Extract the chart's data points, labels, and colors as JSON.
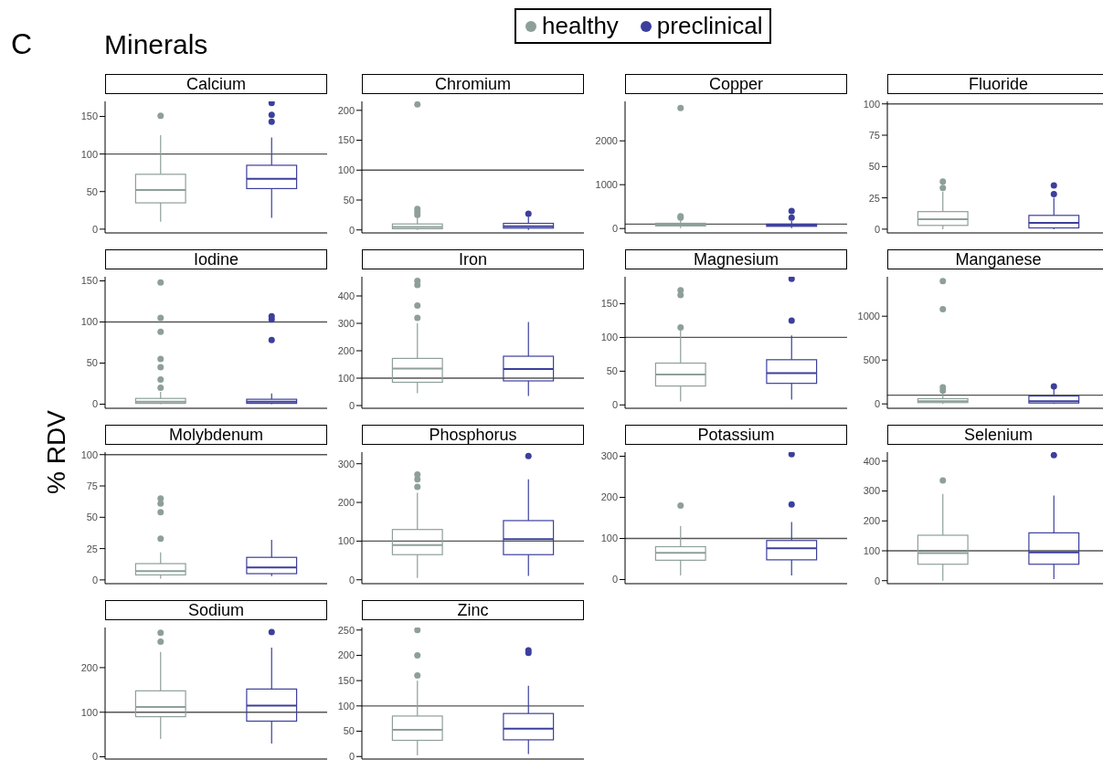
{
  "chart_data": [
    {
      "type": "other",
      "title": "Minerals",
      "annotations": [
        "C"
      ]
    },
    {
      "type": "box",
      "title": "Calcium",
      "legend": "top",
      "categories": [
        null,
        null
      ],
      "ylim": [
        -5,
        170
      ],
      "yticks": [
        0,
        50,
        100,
        150
      ],
      "tick_labels": "y",
      "ref_lines": [
        {
          "axis": "y",
          "value": 100,
          "color": "#555555"
        }
      ],
      "series": [
        {
          "name": "healthy",
          "color": "#8e9f99",
          "boxes": [
            {
              "low": 10,
              "q1": 35,
              "median": 52,
              "q3": 73,
              "high": 125,
              "outliers": [
                151
              ]
            },
            null
          ]
        },
        {
          "name": "preclinical",
          "color": "#3c3f9c",
          "boxes": [
            null,
            {
              "low": 15,
              "q1": 54,
              "median": 67,
              "q3": 85,
              "high": 122,
              "outliers": [
                143,
                152,
                168
              ]
            }
          ]
        }
      ]
    },
    {
      "type": "box",
      "title": "Chromium",
      "categories": [
        null,
        null
      ],
      "ylim": [
        -5,
        215
      ],
      "yticks": [
        0,
        50,
        100,
        150,
        200
      ],
      "tick_labels": "y",
      "ref_lines": [
        {
          "axis": "y",
          "value": 100,
          "color": "#555555"
        }
      ],
      "series": [
        {
          "color": "#8e9f99",
          "boxes": [
            {
              "low": 0,
              "q1": 2,
              "median": 5,
              "q3": 10,
              "high": 22,
              "outliers": [
                25,
                30,
                35,
                210
              ]
            },
            null
          ]
        },
        {
          "color": "#3c3f9c",
          "boxes": [
            null,
            {
              "low": 0,
              "q1": 3,
              "median": 6,
              "q3": 11,
              "high": 22,
              "outliers": [
                27
              ]
            }
          ]
        }
      ]
    },
    {
      "type": "box",
      "title": "Copper",
      "categories": [
        null,
        null
      ],
      "ylim": [
        -100,
        2900
      ],
      "yticks": [
        0,
        1000,
        2000
      ],
      "tick_labels": "y",
      "ref_lines": [
        {
          "axis": "y",
          "value": 100,
          "color": "#555555"
        }
      ],
      "series": [
        {
          "color": "#8e9f99",
          "boxes": [
            {
              "low": 10,
              "q1": 60,
              "median": 90,
              "q3": 120,
              "high": 210,
              "outliers": [
                250,
                280,
                2750
              ]
            },
            null
          ]
        },
        {
          "color": "#3c3f9c",
          "boxes": [
            null,
            {
              "low": 10,
              "q1": 50,
              "median": 70,
              "q3": 100,
              "high": 170,
              "outliers": [
                250,
                400
              ]
            }
          ]
        }
      ]
    },
    {
      "type": "box",
      "title": "Fluoride",
      "categories": [
        null,
        null
      ],
      "ylim": [
        -3,
        102
      ],
      "yticks": [
        0,
        25,
        50,
        75,
        100
      ],
      "tick_labels": "y",
      "ref_lines": [
        {
          "axis": "y",
          "value": 100,
          "color": "#555555"
        }
      ],
      "series": [
        {
          "color": "#8e9f99",
          "boxes": [
            {
              "low": 0,
              "q1": 3,
              "median": 8,
              "q3": 14,
              "high": 30,
              "outliers": [
                33,
                38
              ]
            },
            null
          ]
        },
        {
          "color": "#3c3f9c",
          "boxes": [
            null,
            {
              "low": 0,
              "q1": 1,
              "median": 5,
              "q3": 11,
              "high": 25,
              "outliers": [
                28,
                35
              ]
            }
          ]
        }
      ]
    },
    {
      "type": "box",
      "title": "Iodine",
      "categories": [
        null,
        null
      ],
      "ylim": [
        -5,
        155
      ],
      "yticks": [
        0,
        50,
        100,
        150
      ],
      "tick_labels": "y",
      "ref_lines": [
        {
          "axis": "y",
          "value": 100,
          "color": "#555555"
        }
      ],
      "series": [
        {
          "color": "#8e9f99",
          "boxes": [
            {
              "low": 0,
              "q1": 1,
              "median": 3,
              "q3": 7,
              "high": 15,
              "outliers": [
                20,
                30,
                45,
                55,
                88,
                105,
                148
              ]
            },
            null
          ]
        },
        {
          "color": "#3c3f9c",
          "boxes": [
            null,
            {
              "low": 0,
              "q1": 1,
              "median": 3,
              "q3": 6,
              "high": 13,
              "outliers": [
                78,
                103,
                107
              ]
            }
          ]
        }
      ]
    },
    {
      "type": "box",
      "title": "Iron",
      "categories": [
        null,
        null
      ],
      "ylim": [
        -10,
        470
      ],
      "yticks": [
        0,
        100,
        200,
        300,
        400
      ],
      "tick_labels": "y",
      "ref_lines": [
        {
          "axis": "y",
          "value": 100,
          "color": "#555555"
        }
      ],
      "series": [
        {
          "color": "#8e9f99",
          "boxes": [
            {
              "low": 45,
              "q1": 85,
              "median": 135,
              "q3": 172,
              "high": 300,
              "outliers": [
                320,
                365,
                440,
                455
              ]
            },
            null
          ]
        },
        {
          "color": "#3c3f9c",
          "boxes": [
            null,
            {
              "low": 35,
              "q1": 90,
              "median": 133,
              "q3": 180,
              "high": 305
            }
          ]
        }
      ]
    },
    {
      "type": "box",
      "title": "Magnesium",
      "categories": [
        null,
        null
      ],
      "ylim": [
        -5,
        190
      ],
      "yticks": [
        0,
        50,
        100,
        150
      ],
      "tick_labels": "y",
      "ref_lines": [
        {
          "axis": "y",
          "value": 100,
          "color": "#555555"
        }
      ],
      "series": [
        {
          "color": "#8e9f99",
          "boxes": [
            {
              "low": 5,
              "q1": 28,
              "median": 45,
              "q3": 62,
              "high": 110,
              "outliers": [
                115,
                163,
                170
              ]
            },
            null
          ]
        },
        {
          "color": "#3c3f9c",
          "boxes": [
            null,
            {
              "low": 8,
              "q1": 32,
              "median": 47,
              "q3": 67,
              "high": 103,
              "outliers": [
                125,
                187
              ]
            }
          ]
        }
      ]
    },
    {
      "type": "box",
      "title": "Manganese",
      "categories": [
        null,
        null
      ],
      "ylim": [
        -50,
        1450
      ],
      "yticks": [
        0,
        500,
        1000
      ],
      "tick_labels": "y",
      "ref_lines": [
        {
          "axis": "y",
          "value": 100,
          "color": "#555555"
        }
      ],
      "series": [
        {
          "color": "#8e9f99",
          "boxes": [
            {
              "low": 0,
              "q1": 15,
              "median": 30,
              "q3": 60,
              "high": 120,
              "outliers": [
                150,
                190,
                1080,
                1400
              ]
            },
            null
          ]
        },
        {
          "color": "#3c3f9c",
          "boxes": [
            null,
            {
              "low": 0,
              "q1": 10,
              "median": 30,
              "q3": 90,
              "high": 180,
              "outliers": [
                200
              ]
            }
          ]
        }
      ]
    },
    {
      "type": "box",
      "title": "Molybdenum",
      "ylabel": "% RDV",
      "categories": [
        null,
        null
      ],
      "ylim": [
        -3,
        102
      ],
      "yticks": [
        0,
        25,
        50,
        75,
        100
      ],
      "tick_labels": "y",
      "ref_lines": [
        {
          "axis": "y",
          "value": 100,
          "color": "#555555"
        }
      ],
      "series": [
        {
          "color": "#8e9f99",
          "boxes": [
            {
              "low": 1,
              "q1": 4,
              "median": 7,
              "q3": 13,
              "high": 22,
              "outliers": [
                33,
                54,
                61,
                65
              ]
            },
            null
          ]
        },
        {
          "color": "#3c3f9c",
          "boxes": [
            null,
            {
              "low": 3,
              "q1": 5,
              "median": 10,
              "q3": 18,
              "high": 32
            }
          ]
        }
      ]
    },
    {
      "type": "box",
      "title": "Phosphorus",
      "categories": [
        null,
        null
      ],
      "ylim": [
        -10,
        330
      ],
      "yticks": [
        0,
        100,
        200,
        300
      ],
      "tick_labels": "y",
      "ref_lines": [
        {
          "axis": "y",
          "value": 100,
          "color": "#555555"
        }
      ],
      "series": [
        {
          "color": "#8e9f99",
          "boxes": [
            {
              "low": 5,
              "q1": 65,
              "median": 90,
              "q3": 130,
              "high": 225,
              "outliers": [
                240,
                260,
                272
              ]
            },
            null
          ]
        },
        {
          "color": "#3c3f9c",
          "boxes": [
            null,
            {
              "low": 10,
              "q1": 65,
              "median": 105,
              "q3": 153,
              "high": 260,
              "outliers": [
                320
              ]
            }
          ]
        }
      ]
    },
    {
      "type": "box",
      "title": "Potassium",
      "categories": [
        null,
        null
      ],
      "ylim": [
        -10,
        310
      ],
      "yticks": [
        0,
        100,
        200,
        300
      ],
      "tick_labels": "y",
      "ref_lines": [
        {
          "axis": "y",
          "value": 100,
          "color": "#555555"
        }
      ],
      "series": [
        {
          "color": "#8e9f99",
          "boxes": [
            {
              "low": 10,
              "q1": 47,
              "median": 65,
              "q3": 80,
              "high": 130,
              "outliers": [
                180
              ]
            },
            null
          ]
        },
        {
          "color": "#3c3f9c",
          "boxes": [
            null,
            {
              "low": 10,
              "q1": 48,
              "median": 76,
              "q3": 95,
              "high": 140,
              "outliers": [
                183,
                305
              ]
            }
          ]
        }
      ]
    },
    {
      "type": "box",
      "title": "Selenium",
      "categories": [
        null,
        null
      ],
      "ylim": [
        -10,
        430
      ],
      "yticks": [
        0,
        100,
        200,
        300,
        400
      ],
      "tick_labels": "y",
      "ref_lines": [
        {
          "axis": "y",
          "value": 100,
          "color": "#555555"
        }
      ],
      "series": [
        {
          "color": "#8e9f99",
          "boxes": [
            {
              "low": 0,
              "q1": 55,
              "median": 92,
              "q3": 152,
              "high": 290,
              "outliers": [
                335
              ]
            },
            null
          ]
        },
        {
          "color": "#3c3f9c",
          "boxes": [
            null,
            {
              "low": 5,
              "q1": 55,
              "median": 95,
              "q3": 160,
              "high": 285,
              "outliers": [
                420
              ]
            }
          ]
        }
      ]
    },
    {
      "type": "box",
      "title": "Sodium",
      "categories": [
        null,
        null
      ],
      "ylim": [
        -5,
        290
      ],
      "yticks": [
        0,
        100,
        200
      ],
      "tick_labels": "y",
      "ref_lines": [
        {
          "axis": "y",
          "value": 100,
          "color": "#555555"
        }
      ],
      "series": [
        {
          "color": "#8e9f99",
          "boxes": [
            {
              "low": 40,
              "q1": 90,
              "median": 112,
              "q3": 148,
              "high": 235,
              "outliers": [
                258,
                278
              ]
            },
            null
          ]
        },
        {
          "color": "#3c3f9c",
          "boxes": [
            null,
            {
              "low": 30,
              "q1": 80,
              "median": 115,
              "q3": 152,
              "high": 245,
              "outliers": [
                280
              ]
            }
          ]
        }
      ]
    },
    {
      "type": "box",
      "title": "Zinc",
      "categories": [
        null,
        null
      ],
      "ylim": [
        -5,
        255
      ],
      "yticks": [
        0,
        50,
        100,
        150,
        200,
        250
      ],
      "tick_labels": "y",
      "ref_lines": [
        {
          "axis": "y",
          "value": 100,
          "color": "#555555"
        }
      ],
      "series": [
        {
          "color": "#8e9f99",
          "boxes": [
            {
              "low": 2,
              "q1": 32,
              "median": 53,
              "q3": 80,
              "high": 150,
              "outliers": [
                160,
                200,
                250
              ]
            },
            null
          ]
        },
        {
          "color": "#3c3f9c",
          "boxes": [
            null,
            {
              "low": 5,
              "q1": 33,
              "median": 55,
              "q3": 85,
              "high": 140,
              "outliers": [
                205,
                210
              ]
            }
          ]
        }
      ]
    }
  ]
}
